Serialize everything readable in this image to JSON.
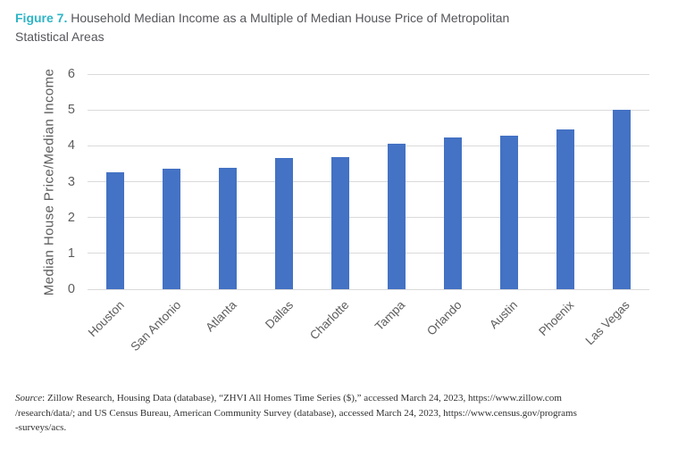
{
  "title": {
    "figure_label": "Figure 7.",
    "text": " Household Median Income as a Multiple of Median House Price of Metropolitan\nStatistical Areas"
  },
  "chart_data": {
    "type": "bar",
    "title": "Household Median Income as a Multiple of Median House Price of Metropolitan Statistical Areas",
    "categories": [
      "Houston",
      "San Antonio",
      "Atlanta",
      "Dallas",
      "Charlotte",
      "Tampa",
      "Orlando",
      "Austin",
      "Phoenix",
      "Las Vegas"
    ],
    "values": [
      3.26,
      3.35,
      3.39,
      3.66,
      3.68,
      4.05,
      4.23,
      4.27,
      4.45,
      5.0
    ],
    "xlabel": "",
    "ylabel": "Median House Price/Median Income",
    "ylim": [
      0,
      6
    ],
    "yticks": [
      0,
      1,
      2,
      3,
      4,
      5,
      6
    ],
    "grid": "horizontal",
    "legend": "none",
    "bar_color": "#4472c4",
    "gridline_color": "#dadada",
    "axis_text_color": "#5d5d5d"
  },
  "source": {
    "label": "Source",
    "text": ": Zillow Research, Housing Data (database), “ZHVI All Homes Time Series ($),” accessed March 24, 2023, https://www.zillow.com\n/research/data/; and US Census Bureau, American Community Survey (database), accessed March 24, 2023, https://www.census.gov/programs\n-surveys/acs."
  },
  "colors": {
    "figure_label": "#2eb4c6",
    "title_text": "#55565b",
    "source_text": "#303030"
  }
}
